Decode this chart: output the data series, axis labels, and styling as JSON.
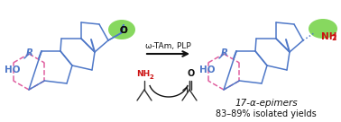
{
  "background_color": "#ffffff",
  "reaction_label": "ω-TAm, PLP",
  "yield_line1": "17-α-epimers",
  "yield_line2": "83–89% isolated yields",
  "steroid_color": "#4f78c8",
  "aromatic_color": "#e060a0",
  "highlight_green": "#5fcc2a",
  "highlight_green_alpha": 0.75,
  "HO_color": "#4f78c8",
  "R_color": "#4f78c8",
  "NH2_color": "#cc1111",
  "bond_color": "#333333",
  "arrow_color": "#111111",
  "lw": 1.1
}
